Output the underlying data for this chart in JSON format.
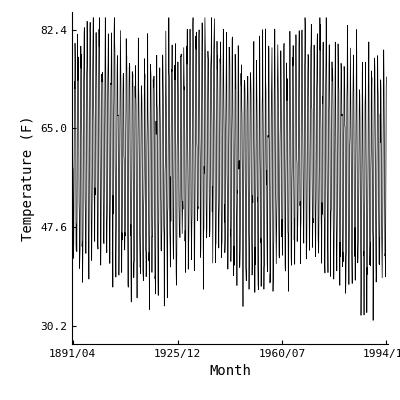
{
  "title": "",
  "xlabel": "Month",
  "ylabel": "Temperature (F)",
  "xlim_start_year": 1891,
  "xlim_start_month": 1,
  "xlim_end_year": 1995,
  "xlim_end_month": 6,
  "ylim": [
    27.0,
    85.5
  ],
  "yticks": [
    30.2,
    47.6,
    65.0,
    82.4
  ],
  "xtick_labels": [
    "1891/04",
    "1925/12",
    "1960/07",
    "1994/12"
  ],
  "xtick_positions": [
    {
      "year": 1891,
      "month": 4
    },
    {
      "year": 1925,
      "month": 12
    },
    {
      "year": 1960,
      "month": 7
    },
    {
      "year": 1994,
      "month": 12
    }
  ],
  "line_color": "#000000",
  "line_width": 0.5,
  "background_color": "#ffffff",
  "data_start_year": 1891,
  "data_start_month": 1,
  "data_end_year": 1994,
  "data_end_month": 12,
  "annual_mean": 60.0,
  "amplitude": 18.5,
  "noise_std": 3.5,
  "font_size_ticks": 8,
  "font_size_labels": 10
}
